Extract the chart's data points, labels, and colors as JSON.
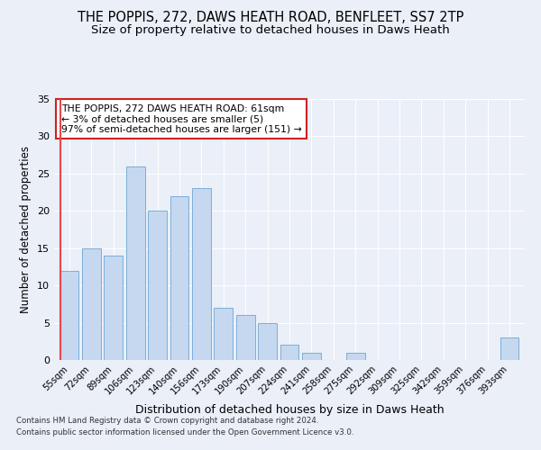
{
  "title1": "THE POPPIS, 272, DAWS HEATH ROAD, BENFLEET, SS7 2TP",
  "title2": "Size of property relative to detached houses in Daws Heath",
  "xlabel": "Distribution of detached houses by size in Daws Heath",
  "ylabel": "Number of detached properties",
  "categories": [
    "55sqm",
    "72sqm",
    "89sqm",
    "106sqm",
    "123sqm",
    "140sqm",
    "156sqm",
    "173sqm",
    "190sqm",
    "207sqm",
    "224sqm",
    "241sqm",
    "258sqm",
    "275sqm",
    "292sqm",
    "309sqm",
    "325sqm",
    "342sqm",
    "359sqm",
    "376sqm",
    "393sqm"
  ],
  "values": [
    12,
    15,
    14,
    26,
    20,
    22,
    23,
    7,
    6,
    5,
    2,
    1,
    0,
    1,
    0,
    0,
    0,
    0,
    0,
    0,
    3
  ],
  "bar_color": "#c5d8f0",
  "bar_edge_color": "#6ca6d4",
  "highlight_color": "#e8464b",
  "annotation_title": "THE POPPIS, 272 DAWS HEATH ROAD: 61sqm",
  "annotation_line1": "← 3% of detached houses are smaller (5)",
  "annotation_line2": "97% of semi-detached houses are larger (151) →",
  "annotation_box_color": "#ffffff",
  "annotation_box_edge": "#cc2222",
  "footer1": "Contains HM Land Registry data © Crown copyright and database right 2024.",
  "footer2": "Contains public sector information licensed under the Open Government Licence v3.0.",
  "ylim": [
    0,
    35
  ],
  "yticks": [
    0,
    5,
    10,
    15,
    20,
    25,
    30,
    35
  ],
  "background_color": "#eaeff8",
  "grid_color": "#ffffff",
  "title_fontsize": 10.5,
  "subtitle_fontsize": 9.5
}
